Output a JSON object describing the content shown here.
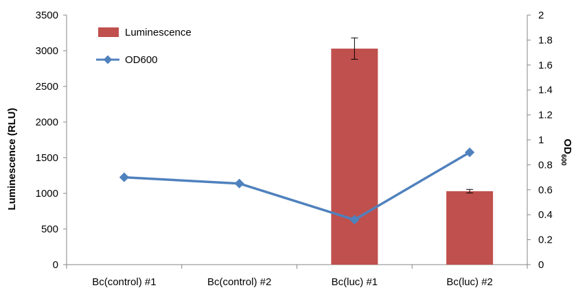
{
  "chart_data": {
    "type": "bar",
    "categories": [
      "Bc(control) #1",
      "Bc(control) #2",
      "Bc(luc) #1",
      "Bc(luc) #2"
    ],
    "series": [
      {
        "name": "Luminescence",
        "type": "bar",
        "axis": "left",
        "values": [
          0,
          0,
          3030,
          1030
        ],
        "error": [
          0,
          0,
          150,
          25
        ],
        "color": "#c0504d"
      },
      {
        "name": "OD600",
        "type": "line",
        "axis": "right",
        "values": [
          0.7,
          0.65,
          0.36,
          0.9
        ],
        "color": "#4f81bd"
      }
    ],
    "ylabel": "Luminescence  (RLU)",
    "y2label": {
      "main": "OD",
      "sub": "600"
    },
    "ylim": [
      0,
      3500
    ],
    "y2lim": [
      0,
      2
    ],
    "yticks": [
      0,
      500,
      1000,
      1500,
      2000,
      2500,
      3000,
      3500
    ],
    "y2ticks": [
      0,
      0.2,
      0.4,
      0.6,
      0.8,
      1,
      1.2,
      1.4,
      1.6,
      1.8,
      2
    ],
    "grid": false,
    "legend": "top-left"
  }
}
